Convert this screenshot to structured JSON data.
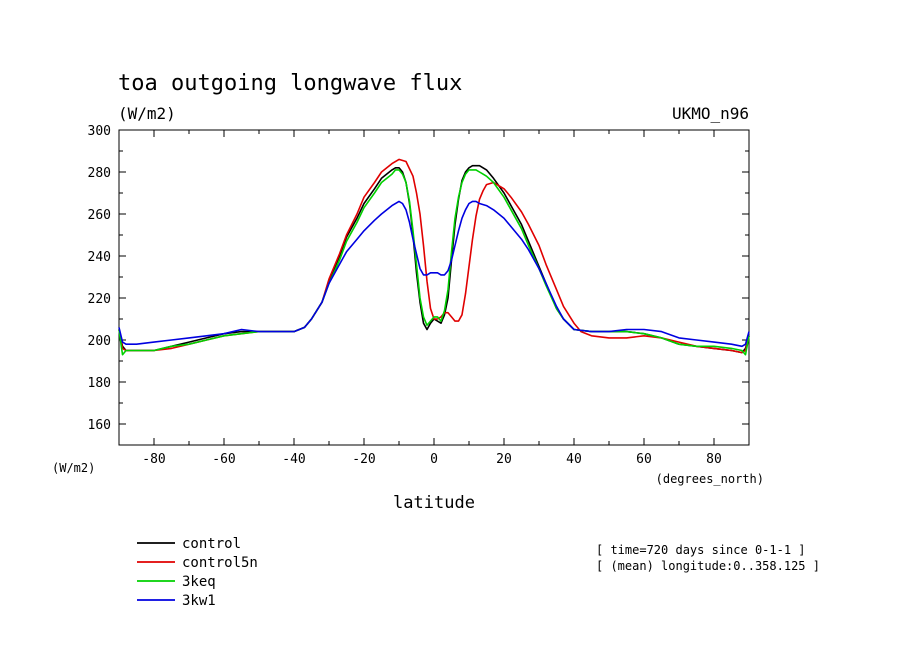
{
  "chart_data": {
    "type": "line",
    "title": "toa outgoing longwave flux",
    "units": "(W/m2)",
    "model": "UKMO_n96",
    "xlabel": "latitude",
    "x_units": "(degrees_north)",
    "y_units": "(W/m2)",
    "xlim": [
      -90,
      90
    ],
    "ylim": [
      150,
      300
    ],
    "x_ticks": [
      -80,
      -60,
      -40,
      -20,
      0,
      20,
      40,
      60,
      80
    ],
    "x_tick_labels": [
      "-80",
      "-60",
      "-40",
      "-20",
      "0",
      "20",
      "40",
      "60",
      "80"
    ],
    "y_ticks": [
      160,
      180,
      200,
      220,
      240,
      260,
      280,
      300
    ],
    "y_tick_labels": [
      "160",
      "180",
      "200",
      "220",
      "240",
      "260",
      "280",
      "300"
    ],
    "notes": [
      "[ time=720 days since 0-1-1 ]",
      "[ (mean) longitude:0..358.125 ]"
    ],
    "series": [
      {
        "name": "control",
        "color": "#000000",
        "x": [
          -90,
          -89,
          -88,
          -85,
          -80,
          -75,
          -70,
          -65,
          -60,
          -55,
          -50,
          -45,
          -40,
          -37,
          -35,
          -32,
          -30,
          -27,
          -25,
          -22,
          -20,
          -17,
          -15,
          -12,
          -11,
          -10,
          -9,
          -8,
          -7,
          -6,
          -5,
          -4,
          -3,
          -2,
          -1,
          0,
          1,
          2,
          3,
          4,
          5,
          6,
          7,
          8,
          9,
          10,
          11,
          12,
          13,
          14,
          15,
          17,
          20,
          22,
          25,
          27,
          30,
          32,
          35,
          37,
          40,
          45,
          50,
          55,
          60,
          65,
          70,
          75,
          80,
          85,
          88,
          89,
          90
        ],
        "y": [
          205,
          197,
          195,
          195,
          195,
          197,
          199,
          201,
          203,
          204,
          204,
          204,
          204,
          206,
          210,
          218,
          228,
          240,
          249,
          258,
          265,
          272,
          277,
          281,
          282,
          282,
          280,
          275,
          265,
          250,
          232,
          218,
          208,
          205,
          208,
          210,
          209,
          208,
          212,
          220,
          238,
          255,
          267,
          276,
          280,
          282,
          283,
          283,
          283,
          282,
          281,
          277,
          270,
          264,
          255,
          247,
          235,
          227,
          215,
          210,
          205,
          204,
          204,
          204,
          203,
          201,
          198,
          197,
          196,
          195,
          194,
          196,
          202
        ]
      },
      {
        "name": "control5n",
        "color": "#e00000",
        "x": [
          -90,
          -89,
          -88,
          -85,
          -80,
          -75,
          -70,
          -65,
          -60,
          -55,
          -50,
          -45,
          -40,
          -37,
          -35,
          -32,
          -30,
          -27,
          -25,
          -22,
          -20,
          -17,
          -15,
          -12,
          -10,
          -8,
          -6,
          -5,
          -4,
          -3,
          -2,
          -1,
          0,
          1,
          2,
          3,
          4,
          5,
          6,
          7,
          8,
          9,
          10,
          11,
          12,
          13,
          14,
          15,
          17,
          19,
          20,
          22,
          25,
          27,
          30,
          32,
          35,
          37,
          40,
          42,
          45,
          50,
          55,
          60,
          65,
          70,
          75,
          80,
          85,
          88,
          89,
          90
        ],
        "y": [
          205,
          196,
          195,
          195,
          195,
          196,
          198,
          200,
          202,
          203,
          204,
          204,
          204,
          206,
          210,
          218,
          229,
          241,
          250,
          260,
          268,
          275,
          280,
          284,
          286,
          285,
          278,
          270,
          260,
          245,
          228,
          215,
          210,
          210,
          211,
          213,
          213,
          211,
          209,
          209,
          212,
          222,
          235,
          248,
          259,
          267,
          271,
          274,
          275,
          273,
          272,
          268,
          261,
          255,
          245,
          236,
          224,
          216,
          208,
          204,
          202,
          201,
          201,
          202,
          201,
          199,
          197,
          196,
          195,
          194,
          195,
          202
        ]
      },
      {
        "name": "3keq",
        "color": "#00d000",
        "x": [
          -90,
          -89,
          -88,
          -85,
          -80,
          -75,
          -70,
          -65,
          -60,
          -55,
          -50,
          -45,
          -40,
          -37,
          -35,
          -32,
          -30,
          -27,
          -25,
          -22,
          -20,
          -17,
          -15,
          -12,
          -11,
          -10,
          -9,
          -8,
          -7,
          -6,
          -5,
          -4,
          -3,
          -2,
          -1,
          0,
          1,
          2,
          3,
          4,
          5,
          6,
          7,
          8,
          9,
          10,
          11,
          12,
          13,
          14,
          15,
          17,
          20,
          22,
          25,
          27,
          30,
          32,
          35,
          37,
          40,
          45,
          50,
          55,
          60,
          65,
          70,
          75,
          80,
          85,
          88,
          89,
          90
        ],
        "y": [
          205,
          193,
          195,
          195,
          195,
          197,
          198,
          200,
          202,
          203,
          204,
          204,
          204,
          206,
          210,
          218,
          227,
          238,
          247,
          256,
          263,
          270,
          275,
          279,
          281,
          281,
          279,
          275,
          266,
          252,
          236,
          220,
          211,
          207,
          209,
          211,
          211,
          209,
          214,
          224,
          242,
          258,
          268,
          275,
          279,
          281,
          281,
          281,
          280,
          279,
          278,
          275,
          268,
          262,
          253,
          245,
          234,
          226,
          215,
          210,
          205,
          204,
          204,
          204,
          203,
          201,
          198,
          197,
          197,
          196,
          195,
          193,
          202
        ]
      },
      {
        "name": "3kw1",
        "color": "#0000e0",
        "x": [
          -90,
          -89,
          -88,
          -85,
          -80,
          -75,
          -70,
          -65,
          -60,
          -55,
          -50,
          -45,
          -40,
          -37,
          -35,
          -32,
          -30,
          -27,
          -25,
          -22,
          -20,
          -17,
          -15,
          -12,
          -10,
          -9,
          -8,
          -7,
          -6,
          -5,
          -4,
          -3,
          -2,
          -1,
          0,
          1,
          2,
          3,
          4,
          5,
          6,
          7,
          8,
          9,
          10,
          11,
          12,
          13,
          15,
          17,
          20,
          22,
          25,
          27,
          30,
          32,
          35,
          37,
          40,
          45,
          50,
          55,
          60,
          65,
          70,
          75,
          80,
          85,
          88,
          89,
          90
        ],
        "y": [
          206,
          199,
          198,
          198,
          199,
          200,
          201,
          202,
          203,
          205,
          204,
          204,
          204,
          206,
          210,
          218,
          227,
          236,
          242,
          248,
          252,
          257,
          260,
          264,
          266,
          265,
          262,
          256,
          248,
          241,
          234,
          231,
          231,
          232,
          232,
          232,
          231,
          231,
          233,
          238,
          245,
          252,
          258,
          262,
          265,
          266,
          266,
          265,
          264,
          262,
          258,
          254,
          248,
          243,
          234,
          227,
          216,
          210,
          205,
          204,
          204,
          205,
          205,
          204,
          201,
          200,
          199,
          198,
          197,
          198,
          204
        ]
      }
    ]
  }
}
